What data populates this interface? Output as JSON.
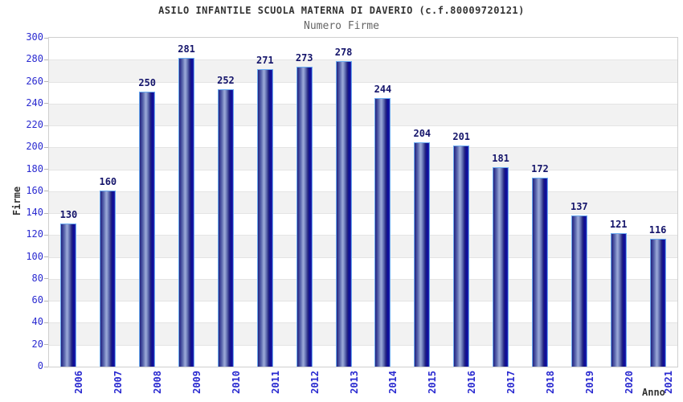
{
  "chart_data": {
    "type": "bar",
    "title": "ASILO INFANTILE SCUOLA MATERNA DI DAVERIO (c.f.80009720121)",
    "subtitle": "Numero Firme",
    "xlabel": "Anno",
    "ylabel": "Firme",
    "categories": [
      "2006",
      "2007",
      "2008",
      "2009",
      "2010",
      "2011",
      "2012",
      "2013",
      "2014",
      "2015",
      "2016",
      "2017",
      "2018",
      "2019",
      "2020",
      "2021"
    ],
    "values": [
      130,
      160,
      250,
      281,
      252,
      271,
      273,
      278,
      244,
      204,
      201,
      181,
      172,
      137,
      121,
      116
    ],
    "ylim": [
      0,
      300
    ],
    "ytick_step": 20,
    "grid": true,
    "legend_position": "none",
    "colors": {
      "bar_dark": "#16167a",
      "bar_highlight": "#9aa8d8",
      "bar_deep_right": "#0d0d96",
      "bar_border": "#6aaaf0",
      "axis_tick_label": "#2a2ad0",
      "value_label": "#15156b",
      "band_gray": "#f2f2f2",
      "gridline": "#e4e4e4",
      "plot_border": "#cfcfcf",
      "title_color": "#333333",
      "subtitle_color": "#666666"
    }
  }
}
